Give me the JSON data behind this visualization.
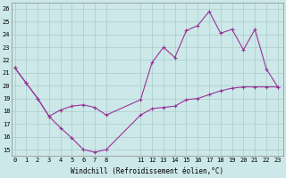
{
  "xlabel": "Windchill (Refroidissement éolien,°C)",
  "background_color": "#cce8e8",
  "grid_color": "#aacccc",
  "line_color": "#993399",
  "ylim": [
    14.5,
    26.5
  ],
  "yticks": [
    15,
    16,
    17,
    18,
    19,
    20,
    21,
    22,
    23,
    24,
    25,
    26
  ],
  "xticks": [
    0,
    1,
    2,
    3,
    4,
    5,
    6,
    7,
    8,
    11,
    12,
    13,
    14,
    15,
    16,
    17,
    18,
    19,
    20,
    21,
    22,
    23
  ],
  "xlim": [
    -0.3,
    23.5
  ],
  "series1_x": [
    0,
    1,
    2,
    3,
    4,
    5,
    6,
    7,
    8,
    11,
    12,
    13,
    14,
    15,
    16,
    17,
    18,
    19,
    20,
    21,
    22,
    23
  ],
  "series1_y": [
    21.4,
    20.2,
    19.0,
    17.6,
    16.7,
    15.9,
    15.0,
    14.8,
    15.0,
    17.7,
    18.2,
    18.3,
    18.4,
    18.9,
    19.0,
    19.3,
    19.6,
    19.8,
    19.9,
    19.9,
    19.9,
    19.9
  ],
  "series2_x": [
    0,
    1,
    2,
    3,
    4,
    5,
    6,
    7,
    8,
    11,
    12,
    13,
    14,
    15,
    16,
    17,
    18,
    19,
    20,
    21,
    22,
    23
  ],
  "series2_y": [
    21.4,
    20.2,
    19.0,
    17.6,
    18.1,
    18.4,
    18.5,
    18.3,
    17.7,
    18.9,
    21.8,
    23.0,
    22.2,
    24.3,
    24.7,
    25.8,
    24.1,
    24.4,
    22.8,
    24.4,
    21.3,
    19.9
  ]
}
